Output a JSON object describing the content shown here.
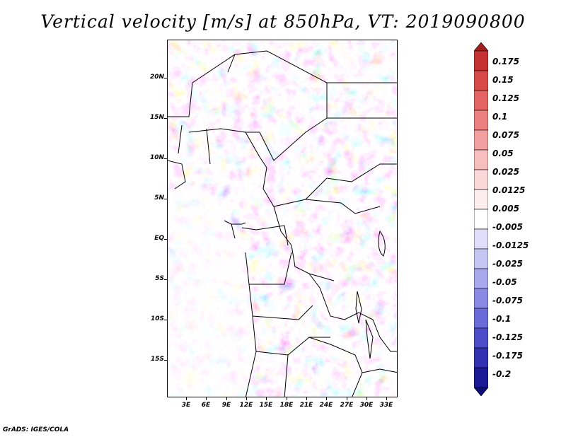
{
  "title": "Vertical velocity [m/s] at 850hPa, VT: 2019090800",
  "footer": "GrADS: IGES/COLA",
  "lat_labels": [
    "20N",
    "15N",
    "10N",
    "5N",
    "EQ",
    "5S",
    "10S",
    "15S"
  ],
  "lon_labels": [
    "3E",
    "6E",
    "9E",
    "12E",
    "15E",
    "18E",
    "21E",
    "24E",
    "27E",
    "30E",
    "33E"
  ],
  "colorbar": {
    "labels": [
      "0.175",
      "0.15",
      "0.125",
      "0.1",
      "0.075",
      "0.05",
      "0.025",
      "0.0125",
      "0.005",
      "-0.005",
      "-0.0125",
      "-0.025",
      "-0.05",
      "-0.075",
      "-0.1",
      "-0.125",
      "-0.175",
      "-0.2"
    ],
    "colors": [
      "#a51e1e",
      "#c43232",
      "#d84a4a",
      "#e46464",
      "#ec8080",
      "#f2a0a0",
      "#f7bebe",
      "#fad8d8",
      "#fdeeee",
      "#ffffff",
      "#dedef8",
      "#c6c6f2",
      "#a8a8ec",
      "#8a8ae4",
      "#6a6ad8",
      "#4c4cc8",
      "#3030b0",
      "#1a1a96",
      "#0e0e78"
    ]
  }
}
